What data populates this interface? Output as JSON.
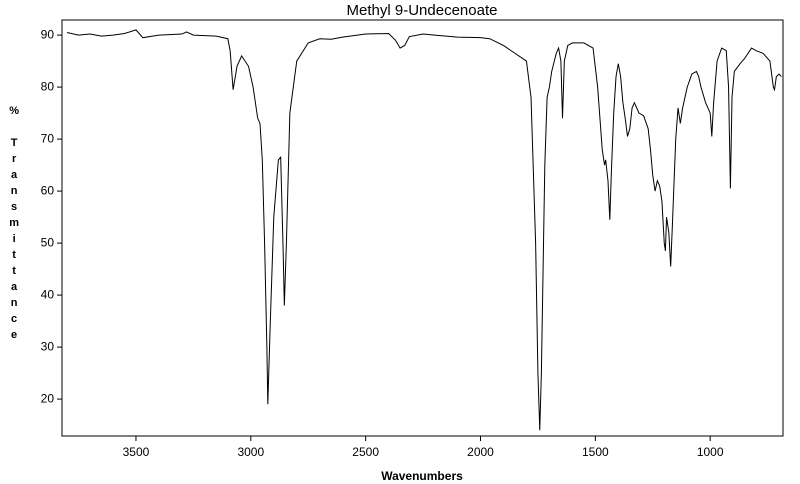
{
  "chart_data": {
    "type": "line",
    "title": "Methyl 9-Undecenoate",
    "x_label": "Wavenumbers",
    "y_label": "% Transmittance",
    "xlim": [
      3822,
      683
    ],
    "ylim": [
      12.9,
      92.9
    ],
    "xticks": [
      3500,
      3000,
      2500,
      2000,
      1500,
      1000
    ],
    "yticks": [
      20,
      30,
      40,
      50,
      60,
      70,
      80,
      90
    ],
    "x": [
      3800,
      3750,
      3700,
      3650,
      3600,
      3550,
      3500,
      3470,
      3400,
      3300,
      3280,
      3250,
      3150,
      3100,
      3090,
      3077,
      3060,
      3040,
      3010,
      2990,
      2970,
      2960,
      2950,
      2940,
      2930,
      2926,
      2915,
      2900,
      2880,
      2870,
      2860,
      2854,
      2845,
      2830,
      2800,
      2750,
      2700,
      2650,
      2600,
      2500,
      2400,
      2370,
      2350,
      2330,
      2310,
      2250,
      2200,
      2100,
      2000,
      1960,
      1900,
      1800,
      1780,
      1760,
      1750,
      1742,
      1735,
      1720,
      1710,
      1700,
      1690,
      1670,
      1660,
      1650,
      1643,
      1635,
      1620,
      1600,
      1550,
      1510,
      1490,
      1470,
      1460,
      1455,
      1445,
      1437,
      1430,
      1420,
      1410,
      1400,
      1390,
      1380,
      1370,
      1360,
      1350,
      1340,
      1330,
      1320,
      1310,
      1290,
      1270,
      1260,
      1250,
      1240,
      1230,
      1220,
      1210,
      1200,
      1195,
      1190,
      1180,
      1172,
      1165,
      1150,
      1140,
      1130,
      1120,
      1100,
      1080,
      1060,
      1050,
      1040,
      1020,
      1000,
      993,
      985,
      970,
      950,
      930,
      920,
      912,
      905,
      895,
      870,
      850,
      820,
      800,
      770,
      740,
      725,
      720,
      712,
      700,
      690
    ],
    "series": [
      {
        "color": "#000000",
        "values": [
          90.5,
          90,
          90.2,
          89.8,
          90,
          90.3,
          91,
          89.5,
          90,
          90.2,
          90.6,
          90,
          89.8,
          89.3,
          87,
          79.5,
          84,
          86,
          84,
          80,
          74,
          73,
          66,
          50,
          30,
          19,
          35,
          55,
          66,
          66.5,
          50,
          38,
          50,
          75,
          85,
          88.5,
          89.3,
          89.2,
          89.6,
          90.2,
          90.3,
          89,
          87.5,
          88,
          89.7,
          90.2,
          90,
          89.6,
          89.5,
          89.3,
          88,
          85,
          78,
          50,
          25,
          14,
          25,
          65,
          78,
          80,
          83,
          86.5,
          87.5,
          85,
          74,
          85,
          88,
          88.5,
          88.5,
          87.5,
          80,
          68,
          65,
          66,
          62,
          54.5,
          64,
          75,
          82,
          84.5,
          82,
          77,
          74,
          70.5,
          72,
          76,
          77,
          76,
          75,
          74.5,
          72,
          68,
          63,
          60,
          62,
          61,
          58,
          50,
          48.5,
          55,
          52,
          45.5,
          53,
          70,
          76,
          73,
          76,
          80,
          82.5,
          83,
          82,
          80,
          77,
          75,
          70.5,
          77,
          85,
          87.5,
          87,
          80,
          60.5,
          78,
          83,
          84.5,
          85.5,
          87.5,
          87,
          86.5,
          85,
          80,
          79.5,
          82,
          82.5,
          82
        ]
      }
    ]
  }
}
